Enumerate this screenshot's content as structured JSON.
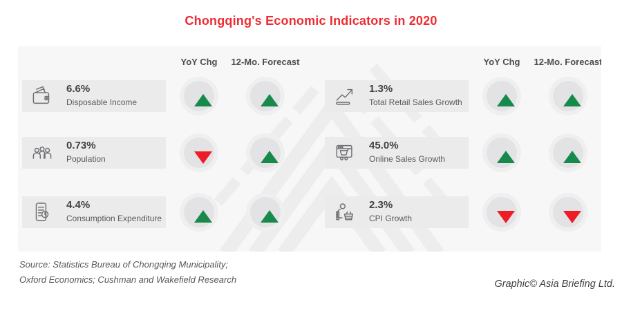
{
  "title": "Chongqing's Economic Indicators in 2020",
  "columns": {
    "yoy": "YoY Chg",
    "forecast": "12-Mo. Forecast"
  },
  "indicators": [
    {
      "group": "left",
      "icon": "wallet-icon",
      "value": "6.6%",
      "label": "Disposable Income",
      "yoy": "up",
      "forecast": "up"
    },
    {
      "group": "left",
      "icon": "population-icon",
      "value": "0.73%",
      "label": "Population",
      "yoy": "down",
      "forecast": "up"
    },
    {
      "group": "left",
      "icon": "mobile-spending-icon",
      "value": "4.4%",
      "label": "Consumption Expenditure",
      "yoy": "up",
      "forecast": "up"
    },
    {
      "group": "right",
      "icon": "retail-chart-icon",
      "value": "1.3%",
      "label": "Total Retail Sales Growth",
      "yoy": "up",
      "forecast": "up"
    },
    {
      "group": "right",
      "icon": "online-cart-icon",
      "value": "45.0%",
      "label": "Online Sales Growth",
      "yoy": "up",
      "forecast": "up"
    },
    {
      "group": "right",
      "icon": "shopper-basket-icon",
      "value": "2.3%",
      "label": "CPI Growth",
      "yoy": "down",
      "forecast": "down"
    }
  ],
  "source": {
    "line1": "Source: Statistics Bureau of Chongqing Municipality;",
    "line2": "Oxford Economics; Cushman and Wakefield Research"
  },
  "credit": "Graphic© Asia Briefing Ltd.",
  "colors": {
    "up_green": "#17894b",
    "down_red": "#ee1c25",
    "title_red": "#ee2b31"
  },
  "chart_data": {
    "type": "table",
    "title": "Chongqing's Economic Indicators in 2020",
    "columns": [
      "Indicator",
      "Value",
      "YoY Chg",
      "12-Mo. Forecast"
    ],
    "rows": [
      [
        "Disposable Income",
        "6.6%",
        "up",
        "up"
      ],
      [
        "Population",
        "0.73%",
        "down",
        "up"
      ],
      [
        "Consumption Expenditure",
        "4.4%",
        "up",
        "up"
      ],
      [
        "Total Retail Sales Growth",
        "1.3%",
        "up",
        "up"
      ],
      [
        "Online Sales Growth",
        "45.0%",
        "up",
        "up"
      ],
      [
        "CPI Growth",
        "2.3%",
        "down",
        "down"
      ]
    ]
  }
}
